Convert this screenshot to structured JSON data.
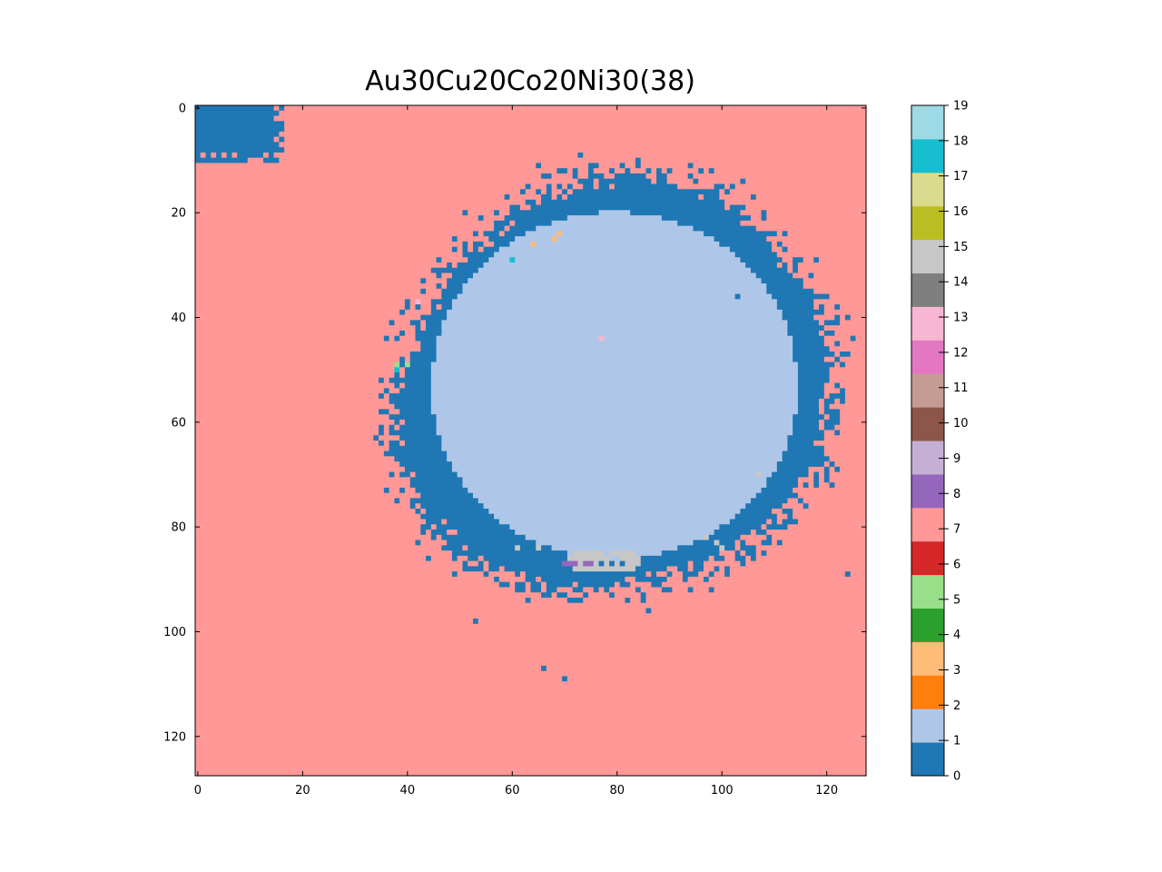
{
  "chart_data": {
    "type": "heatmap",
    "title": "Au30Cu20Co20Ni30(38)",
    "grid_size": [
      128,
      128
    ],
    "xlim": [
      0,
      128
    ],
    "ylim": [
      128,
      0
    ],
    "x_ticks": [
      0,
      20,
      40,
      60,
      80,
      100,
      120
    ],
    "y_ticks": [
      0,
      20,
      40,
      60,
      80,
      100,
      120
    ],
    "grid": false,
    "colorbar": {
      "range": [
        0,
        19
      ],
      "ticks": [
        0,
        1,
        2,
        3,
        4,
        5,
        6,
        7,
        8,
        9,
        10,
        11,
        12,
        13,
        14,
        15,
        16,
        17,
        18,
        19
      ],
      "colors": [
        "#1f77b4",
        "#aec7e8",
        "#ff7f0e",
        "#ffbb78",
        "#2ca02c",
        "#98df8a",
        "#d62728",
        "#ff9896",
        "#9467bd",
        "#c5b0d5",
        "#8c564b",
        "#c49c94",
        "#e377c2",
        "#f7b6d2",
        "#7f7f7f",
        "#c7c7c7",
        "#bcbd22",
        "#dbdb8d",
        "#17becf",
        "#9edae5"
      ]
    },
    "background_value": 7,
    "regions": [
      {
        "label": "matrix",
        "value": 7
      },
      {
        "label": "shell",
        "value": 0,
        "center": [
          80,
          54
        ],
        "outer_radius": 41
      },
      {
        "label": "corner patch",
        "value": 0,
        "x": [
          0,
          17
        ],
        "y": [
          0,
          11
        ]
      },
      {
        "label": "core",
        "value": 1,
        "center": [
          80,
          54
        ],
        "radius": 34
      },
      {
        "label": "cluster",
        "value": 15,
        "center": [
          78,
          87
        ]
      }
    ],
    "points": [
      {
        "x": 64,
        "y": 26,
        "value": 3
      },
      {
        "x": 68,
        "y": 25,
        "value": 3
      },
      {
        "x": 69,
        "y": 24,
        "value": 3
      },
      {
        "x": 60,
        "y": 29,
        "value": 18
      },
      {
        "x": 42,
        "y": 37,
        "value": 13
      },
      {
        "x": 77,
        "y": 44,
        "value": 13
      },
      {
        "x": 38,
        "y": 49,
        "value": 5
      },
      {
        "x": 40,
        "y": 49,
        "value": 5
      },
      {
        "x": 38,
        "y": 50,
        "value": 18
      },
      {
        "x": 107,
        "y": 70,
        "value": 15
      },
      {
        "x": 103,
        "y": 36,
        "value": 0
      },
      {
        "x": 97,
        "y": 82,
        "value": 15
      },
      {
        "x": 99,
        "y": 83,
        "value": 15
      },
      {
        "x": 100,
        "y": 84,
        "value": 15
      },
      {
        "x": 61,
        "y": 84,
        "value": 15
      },
      {
        "x": 65,
        "y": 84,
        "value": 15
      },
      {
        "x": 70,
        "y": 87,
        "value": 8
      },
      {
        "x": 71,
        "y": 87,
        "value": 8
      },
      {
        "x": 72,
        "y": 87,
        "value": 8
      },
      {
        "x": 74,
        "y": 87,
        "value": 8
      },
      {
        "x": 75,
        "y": 87,
        "value": 8
      },
      {
        "x": 66,
        "y": 107,
        "value": 0
      },
      {
        "x": 70,
        "y": 109,
        "value": 0
      },
      {
        "x": 53,
        "y": 98,
        "value": 0
      },
      {
        "x": 124,
        "y": 89,
        "value": 0
      }
    ]
  }
}
